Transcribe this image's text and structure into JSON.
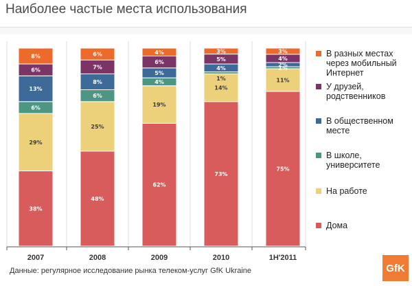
{
  "title": "Наиболее частые места использования",
  "source": "Данные: регулярное исследование рынка телеком-услуг GfK Ukraine",
  "logo_text": "GfK",
  "colors": {
    "logo_bg": "#f07b32",
    "axis": "#555555",
    "grid": "#dcdcdc",
    "background": "#ffffff"
  },
  "chart_data": {
    "type": "bar",
    "stacked": true,
    "normalized_to_percent": true,
    "grid": true,
    "legend_position": "right",
    "categories": [
      "2007",
      "2008",
      "2009",
      "2010",
      "1H'2011"
    ],
    "series": [
      {
        "name": "Дома",
        "color": "#d95c5c",
        "values": [
          38,
          48,
          62,
          73,
          75
        ],
        "labels": [
          "38%",
          "48%",
          "62%",
          "73%",
          "75%"
        ]
      },
      {
        "name": "На работе",
        "color": "#ecd17a",
        "values": [
          29,
          25,
          19,
          14,
          11
        ],
        "labels": [
          "29%",
          "25%",
          "19%",
          "14%",
          "11%"
        ]
      },
      {
        "name": "В школе, университете",
        "color": "#4d9684",
        "values": [
          6,
          6,
          4,
          1,
          1
        ],
        "labels": [
          "6%",
          "6%",
          "4%",
          "1%",
          "1%"
        ]
      },
      {
        "name": "В общественном месте",
        "color": "#3d6a99",
        "values": [
          13,
          8,
          5,
          4,
          2
        ],
        "labels": [
          "13%",
          "8%",
          "5%",
          "4%",
          "2%"
        ]
      },
      {
        "name": "У друзей, родственников",
        "color": "#7a3566",
        "values": [
          6,
          7,
          6,
          5,
          4
        ],
        "labels": [
          "6%",
          "7%",
          "6%",
          "5%",
          "4%"
        ]
      },
      {
        "name": "В разных местах через мобильный Интернет",
        "color": "#ee6a2a",
        "values": [
          8,
          6,
          4,
          3,
          3
        ],
        "labels": [
          "8%",
          "6%",
          "4%",
          "3%",
          "3%"
        ]
      }
    ],
    "labeled_segments": [
      [
        "38%",
        "29%",
        "6%",
        "13%",
        "6%",
        "8%"
      ],
      [
        "48%",
        "25%",
        "6%",
        "8%",
        "7%",
        "6%"
      ],
      [
        "62%",
        "19%",
        "4%",
        "5%",
        "6%",
        "4%"
      ],
      [
        "73%",
        "14%",
        "",
        "4%",
        "5%",
        "3%"
      ],
      [
        "75%",
        "11%",
        "1%",
        "2%",
        "4%",
        "3%"
      ]
    ],
    "extra_labels": [
      {
        "category": "2010",
        "text": "1%"
      }
    ],
    "legend_lines": [
      [
        "В разных местах",
        "через мобильный",
        "Интернет"
      ],
      [
        "У друзей,",
        "родственников"
      ],
      [
        "В общественном",
        "месте"
      ],
      [
        "В школе,",
        "университете"
      ],
      [
        "На работе"
      ],
      [
        "Дома"
      ]
    ]
  }
}
